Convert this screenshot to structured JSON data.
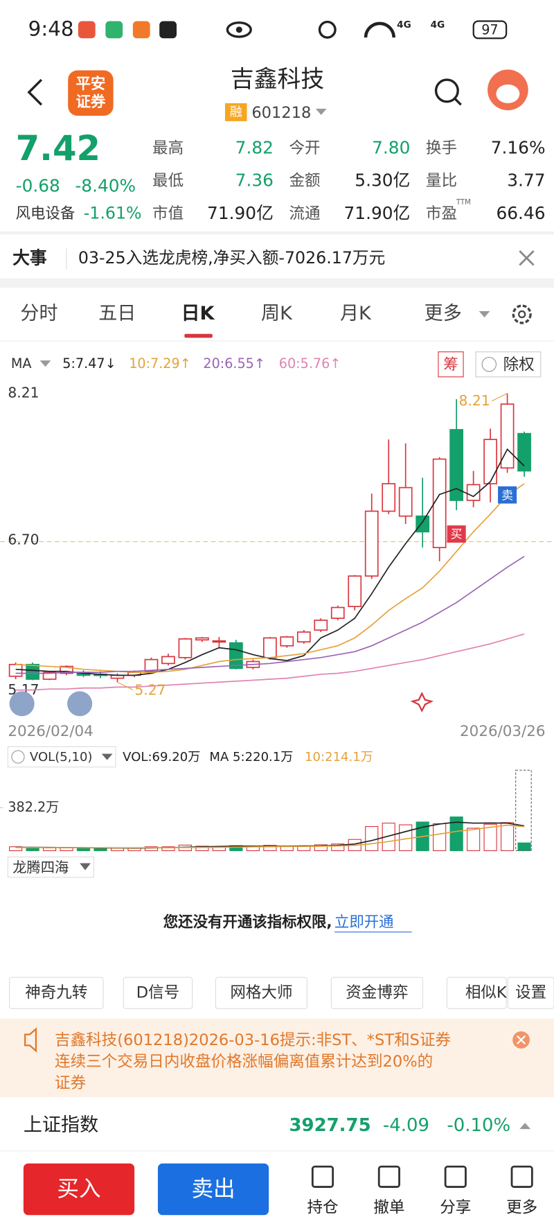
{
  "status_bar": {
    "time": "9:48",
    "signal_1": "4G",
    "signal_2": "4G",
    "battery": "97"
  },
  "header": {
    "logo_line1": "平安",
    "logo_line2": "证券",
    "title": "吉鑫科技",
    "tag": "融",
    "code": "601218"
  },
  "quote": {
    "price": "7.42",
    "change": "-0.68",
    "change_pct": "-8.40%",
    "sector": "风电设备",
    "sector_change": "-1.61%",
    "stats": [
      [
        "最高",
        "7.82"
      ],
      [
        "今开",
        "7.80"
      ],
      [
        "换手",
        "7.16%"
      ],
      [
        "最低",
        "7.36"
      ],
      [
        "金额",
        "5.30亿"
      ],
      [
        "量比",
        "3.77"
      ],
      [
        "市值",
        "71.90亿"
      ],
      [
        "流通",
        "71.90亿"
      ],
      [
        "市盈",
        "66.46"
      ]
    ],
    "pe_mark": "TTM"
  },
  "news": {
    "label": "大事",
    "text": "03-25入选龙虎榜,净买入额-7026.17万元"
  },
  "tabs": [
    "分时",
    "五日",
    "日K",
    "周K",
    "月K",
    "更多"
  ],
  "chart_data": [
    {
      "type": "candlestick",
      "indicator": "MA",
      "chip": "筹",
      "adjust": "除权",
      "high_label": "8.21",
      "low_label": "5.27",
      "buy_marker": "买",
      "sell_marker": "卖",
      "up_color": "#d9363e",
      "down_color": "#14a06a",
      "categories": [
        "2026/02/04",
        null,
        null,
        null,
        null,
        null,
        null,
        null,
        null,
        null,
        null,
        null,
        null,
        null,
        null,
        null,
        null,
        null,
        null,
        null,
        null,
        null,
        null,
        null,
        null,
        null,
        null,
        null,
        null,
        null,
        "2026/03/26"
      ],
      "open": [
        5.33,
        5.45,
        5.3,
        5.36,
        5.37,
        5.35,
        5.31,
        5.34,
        5.38,
        5.46,
        5.52,
        5.7,
        5.69,
        5.67,
        5.42,
        5.52,
        5.64,
        5.68,
        5.8,
        5.92,
        6.04,
        6.35,
        7.01,
        6.96,
        6.96,
        6.64,
        7.84,
        7.12,
        7.29,
        7.45,
        7.8
      ],
      "high": [
        5.47,
        5.47,
        5.38,
        5.44,
        5.39,
        5.38,
        5.36,
        5.39,
        5.52,
        5.56,
        5.72,
        5.73,
        5.73,
        5.7,
        5.5,
        5.73,
        5.74,
        5.8,
        5.92,
        6.05,
        6.36,
        7.19,
        7.74,
        7.7,
        7.35,
        7.56,
        8.15,
        7.42,
        7.85,
        8.21,
        7.82
      ],
      "low": [
        5.3,
        5.29,
        5.29,
        5.34,
        5.32,
        5.31,
        5.27,
        5.32,
        5.36,
        5.44,
        5.5,
        5.68,
        5.62,
        5.4,
        5.4,
        5.5,
        5.62,
        5.66,
        5.78,
        5.9,
        6.0,
        6.32,
        6.98,
        6.88,
        6.64,
        6.5,
        7.02,
        7.05,
        7.1,
        7.4,
        7.36
      ],
      "close": [
        5.45,
        5.3,
        5.37,
        5.43,
        5.34,
        5.34,
        5.34,
        5.37,
        5.5,
        5.53,
        5.71,
        5.72,
        5.69,
        5.41,
        5.48,
        5.72,
        5.73,
        5.78,
        5.9,
        6.03,
        6.35,
        7.01,
        7.29,
        7.25,
        6.8,
        7.54,
        7.12,
        7.28,
        7.74,
        8.1,
        7.42
      ],
      "series": [
        {
          "name": "5:7.47↓",
          "color": "#222222",
          "values": [
            5.4,
            5.39,
            5.38,
            5.38,
            5.36,
            5.35,
            5.34,
            5.34,
            5.36,
            5.4,
            5.47,
            5.55,
            5.62,
            5.6,
            5.55,
            5.51,
            5.49,
            5.54,
            5.72,
            5.8,
            5.92,
            6.17,
            6.44,
            6.68,
            6.9,
            7.18,
            7.24,
            7.16,
            7.31,
            7.64,
            7.47
          ]
        },
        {
          "name": "10:7.29↑",
          "color": "#e5a23a",
          "values": [
            5.45,
            5.44,
            5.43,
            5.42,
            5.4,
            5.39,
            5.38,
            5.37,
            5.37,
            5.38,
            5.4,
            5.44,
            5.48,
            5.5,
            5.51,
            5.52,
            5.54,
            5.56,
            5.6,
            5.64,
            5.72,
            5.85,
            6.0,
            6.12,
            6.23,
            6.4,
            6.6,
            6.8,
            6.98,
            7.17,
            7.29
          ]
        },
        {
          "name": "20:6.55↑",
          "color": "#9a63b5",
          "values": [
            5.36,
            5.36,
            5.36,
            5.37,
            5.37,
            5.37,
            5.38,
            5.38,
            5.39,
            5.4,
            5.41,
            5.42,
            5.43,
            5.44,
            5.45,
            5.46,
            5.48,
            5.5,
            5.52,
            5.55,
            5.58,
            5.64,
            5.72,
            5.8,
            5.88,
            5.98,
            6.08,
            6.2,
            6.32,
            6.44,
            6.55
          ]
        },
        {
          "name": "60:5.76↑",
          "color": "#e083b1",
          "values": [
            5.19,
            5.19,
            5.2,
            5.2,
            5.21,
            5.21,
            5.22,
            5.22,
            5.23,
            5.24,
            5.25,
            5.26,
            5.27,
            5.28,
            5.29,
            5.3,
            5.31,
            5.33,
            5.35,
            5.36,
            5.38,
            5.41,
            5.44,
            5.47,
            5.5,
            5.54,
            5.58,
            5.62,
            5.66,
            5.71,
            5.76
          ]
        }
      ],
      "ylim": [
        5.17,
        8.21
      ],
      "yticks": [
        8.21,
        {
          "value": 6.7,
          "label": "6.70"
        },
        5.17
      ]
    },
    {
      "type": "bar",
      "legend": "VOL(5,10)",
      "value_label": "VOL:69.20万",
      "values": [
        35,
        30,
        25,
        25,
        22,
        20,
        22,
        25,
        35,
        35,
        50,
        40,
        32,
        45,
        35,
        48,
        40,
        42,
        52,
        60,
        100,
        215,
        245,
        230,
        255,
        240,
        300,
        200,
        235,
        250,
        69.2
      ],
      "series": [
        {
          "name": "MA 5:220.1万",
          "color": "#222222",
          "values": [
            30,
            30,
            29,
            28,
            27,
            25,
            24,
            23,
            25,
            27,
            31,
            35,
            38,
            41,
            40,
            40,
            40,
            42,
            43,
            48,
            59,
            90,
            130,
            170,
            209,
            237,
            254,
            245,
            246,
            245,
            220.1
          ]
        },
        {
          "name": "10:214.1万",
          "color": "#e5a23a",
          "values": [
            28,
            28,
            28,
            28,
            27,
            27,
            26,
            26,
            27,
            27,
            28,
            29,
            30,
            32,
            34,
            36,
            37,
            38,
            40,
            42,
            47,
            62,
            82,
            105,
            126,
            148,
            172,
            188,
            208,
            227,
            214.1
          ]
        }
      ],
      "ylim": [
        0,
        382.2
      ],
      "yticks": [
        {
          "value": 382.2,
          "label": "382.2万"
        }
      ]
    }
  ],
  "indicator": {
    "name": "龙腾四海",
    "message": "您还没有开通该指标权限,",
    "link": "立即开通"
  },
  "tools": [
    "神奇九转",
    "D信号",
    "网格大师",
    "资金博弈",
    "相似K",
    "设置"
  ],
  "notice": {
    "lines": [
      "吉鑫科技(601218)2026-03-16提示:非ST、*ST和S证券",
      "连续三个交易日内收盘价格涨幅偏离值累计达到20%的",
      "证券"
    ]
  },
  "index_bar": {
    "name": "上证指数",
    "value": "3927.75",
    "change": "-4.09",
    "change_pct": "-0.10%"
  },
  "actions": {
    "buy": "买入",
    "sell": "卖出",
    "items": [
      "持仓",
      "撤单",
      "分享",
      "更多"
    ]
  }
}
